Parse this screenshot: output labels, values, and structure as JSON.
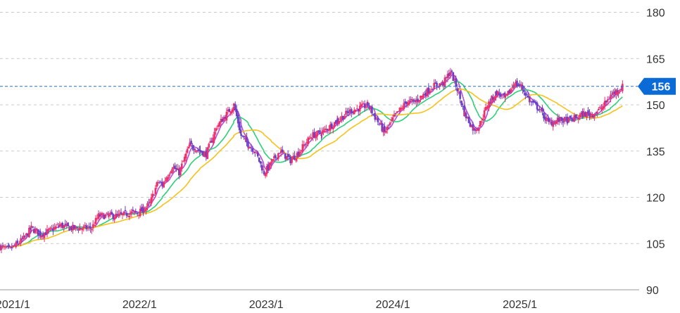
{
  "chart_data": {
    "type": "candlestick",
    "title": "",
    "xlabel": "",
    "ylabel": "",
    "ylim": [
      90,
      184
    ],
    "xlim": [
      "2020-12-15",
      "2025-12-31"
    ],
    "y_ticks": [
      {
        "value": 90,
        "label": "90"
      },
      {
        "value": 105,
        "label": "105"
      },
      {
        "value": 120,
        "label": "120"
      },
      {
        "value": 135,
        "label": "135"
      },
      {
        "value": 150,
        "label": "150"
      },
      {
        "value": 165,
        "label": "165"
      },
      {
        "value": 180,
        "label": "180"
      }
    ],
    "x_ticks": [
      {
        "value": "2021-01-01",
        "label": "2021/1"
      },
      {
        "value": "2022-01-01",
        "label": "2022/1"
      },
      {
        "value": "2023-01-01",
        "label": "2023/1"
      },
      {
        "value": "2024-01-01",
        "label": "2024/1"
      },
      {
        "value": "2025-01-01",
        "label": "2025/1"
      }
    ],
    "grid": true,
    "current_price": {
      "value": 156,
      "label": "156",
      "color": "#0a6bd6"
    },
    "colors": {
      "up": "#ee2f6b",
      "down": "#6a3fc8",
      "ma_short": "#b24fd8",
      "ma_mid": "#2fcf7a",
      "ma_long": "#f5c21b",
      "grid": "#cccccc",
      "price_line": "#2f6fb5"
    },
    "price_path": [
      [
        "2020-12-15",
        104
      ],
      [
        "2021-01-10",
        103
      ],
      [
        "2021-02-05",
        105
      ],
      [
        "2021-02-25",
        107
      ],
      [
        "2021-03-15",
        110
      ],
      [
        "2021-04-10",
        108
      ],
      [
        "2021-05-05",
        109
      ],
      [
        "2021-06-05",
        111
      ],
      [
        "2021-07-05",
        110
      ],
      [
        "2021-08-05",
        110
      ],
      [
        "2021-09-05",
        110
      ],
      [
        "2021-09-25",
        114
      ],
      [
        "2021-10-25",
        114
      ],
      [
        "2021-11-25",
        114
      ],
      [
        "2021-12-25",
        115
      ],
      [
        "2022-01-15",
        115
      ],
      [
        "2022-02-01",
        116
      ],
      [
        "2022-02-20",
        118
      ],
      [
        "2022-03-15",
        125
      ],
      [
        "2022-03-28",
        124
      ],
      [
        "2022-04-25",
        130
      ],
      [
        "2022-05-15",
        128
      ],
      [
        "2022-06-15",
        137
      ],
      [
        "2022-07-15",
        135
      ],
      [
        "2022-08-01",
        134
      ],
      [
        "2022-09-01",
        143
      ],
      [
        "2022-10-20",
        150
      ],
      [
        "2022-11-10",
        140
      ],
      [
        "2022-12-01",
        137
      ],
      [
        "2022-12-20",
        135
      ],
      [
        "2023-01-15",
        128
      ],
      [
        "2023-02-05",
        131
      ],
      [
        "2023-03-01",
        135
      ],
      [
        "2023-04-01",
        132
      ],
      [
        "2023-04-20",
        134
      ],
      [
        "2023-06-01",
        140
      ],
      [
        "2023-07-01",
        141
      ],
      [
        "2023-08-15",
        145
      ],
      [
        "2023-09-20",
        148
      ],
      [
        "2023-10-20",
        149
      ],
      [
        "2023-11-10",
        150
      ],
      [
        "2023-12-01",
        146
      ],
      [
        "2023-12-28",
        141
      ],
      [
        "2024-01-25",
        146
      ],
      [
        "2024-03-01",
        151
      ],
      [
        "2024-03-25",
        151
      ],
      [
        "2024-04-25",
        154
      ],
      [
        "2024-05-15",
        156
      ],
      [
        "2024-06-15",
        157
      ],
      [
        "2024-07-05",
        161
      ],
      [
        "2024-07-25",
        155
      ],
      [
        "2024-08-15",
        147
      ],
      [
        "2024-09-10",
        142
      ],
      [
        "2024-09-25",
        143
      ],
      [
        "2024-10-20",
        150
      ],
      [
        "2024-11-15",
        154
      ],
      [
        "2024-12-10",
        152
      ],
      [
        "2025-01-05",
        157
      ],
      [
        "2025-01-25",
        156
      ],
      [
        "2025-02-20",
        151
      ],
      [
        "2025-03-15",
        149
      ],
      [
        "2025-04-15",
        144
      ],
      [
        "2025-05-10",
        145
      ],
      [
        "2025-06-15",
        145
      ],
      [
        "2025-07-25",
        147
      ],
      [
        "2025-08-20",
        147
      ],
      [
        "2025-09-15",
        149
      ],
      [
        "2025-10-10",
        153
      ],
      [
        "2025-11-01",
        155
      ],
      [
        "2025-11-15",
        156
      ]
    ],
    "series": [
      {
        "key": "ma_short",
        "window": 25
      },
      {
        "key": "ma_mid",
        "window": 75
      },
      {
        "key": "ma_long",
        "window": 150
      }
    ]
  }
}
